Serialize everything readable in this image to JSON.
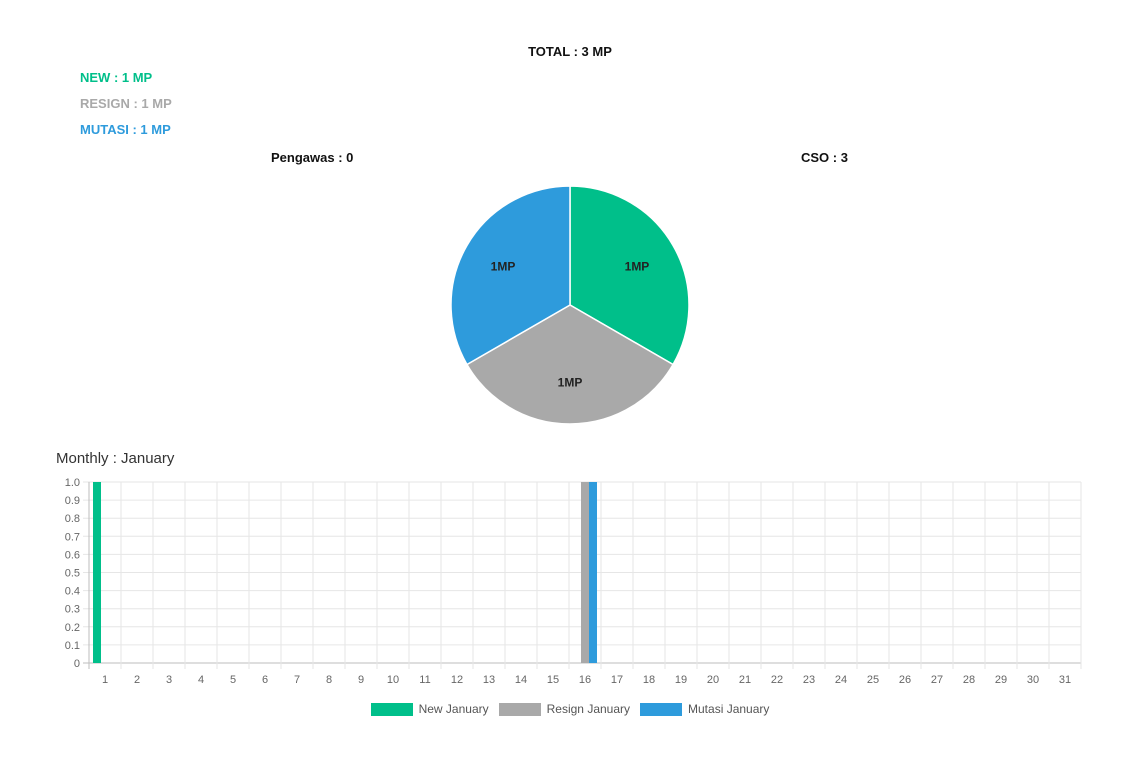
{
  "header": {
    "total": "TOTAL : 3 MP"
  },
  "stats": {
    "new": "NEW : 1 MP",
    "resign": "RESIGN : 1 MP",
    "mutasi": "MUTASI : 1 MP"
  },
  "subcounts": {
    "left": "Pengawas : 0",
    "right": "CSO : 3"
  },
  "section_title": "Monthly : January",
  "colors": {
    "new": "#00bf8a",
    "resign": "#a9a9a9",
    "mutasi": "#2e9bdc"
  },
  "chart_data": [
    {
      "type": "pie",
      "slices": [
        {
          "label": "1MP",
          "value": 1,
          "color": "#00bf8a"
        },
        {
          "label": "1MP",
          "value": 1,
          "color": "#a9a9a9"
        },
        {
          "label": "1MP",
          "value": 1,
          "color": "#2e9bdc"
        }
      ]
    },
    {
      "type": "bar",
      "title": "Monthly : January",
      "categories": [
        "1",
        "2",
        "3",
        "4",
        "5",
        "6",
        "7",
        "8",
        "9",
        "10",
        "11",
        "12",
        "13",
        "14",
        "15",
        "16",
        "17",
        "18",
        "19",
        "20",
        "21",
        "22",
        "23",
        "24",
        "25",
        "26",
        "27",
        "28",
        "29",
        "30",
        "31"
      ],
      "series": [
        {
          "name": "New January",
          "color": "#00bf8a",
          "values": [
            1,
            0,
            0,
            0,
            0,
            0,
            0,
            0,
            0,
            0,
            0,
            0,
            0,
            0,
            0,
            0,
            0,
            0,
            0,
            0,
            0,
            0,
            0,
            0,
            0,
            0,
            0,
            0,
            0,
            0,
            0
          ]
        },
        {
          "name": "Resign January",
          "color": "#a9a9a9",
          "values": [
            0,
            0,
            0,
            0,
            0,
            0,
            0,
            0,
            0,
            0,
            0,
            0,
            0,
            0,
            0,
            1,
            0,
            0,
            0,
            0,
            0,
            0,
            0,
            0,
            0,
            0,
            0,
            0,
            0,
            0,
            0
          ]
        },
        {
          "name": "Mutasi January",
          "color": "#2e9bdc",
          "values": [
            0,
            0,
            0,
            0,
            0,
            0,
            0,
            0,
            0,
            0,
            0,
            0,
            0,
            0,
            0,
            1,
            0,
            0,
            0,
            0,
            0,
            0,
            0,
            0,
            0,
            0,
            0,
            0,
            0,
            0,
            0
          ]
        }
      ],
      "yticks": [
        "0",
        "0.1",
        "0.2",
        "0.3",
        "0.4",
        "0.5",
        "0.6",
        "0.7",
        "0.8",
        "0.9",
        "1.0"
      ],
      "ylim": [
        0,
        1
      ],
      "grid": true,
      "legend_position": "bottom"
    }
  ]
}
